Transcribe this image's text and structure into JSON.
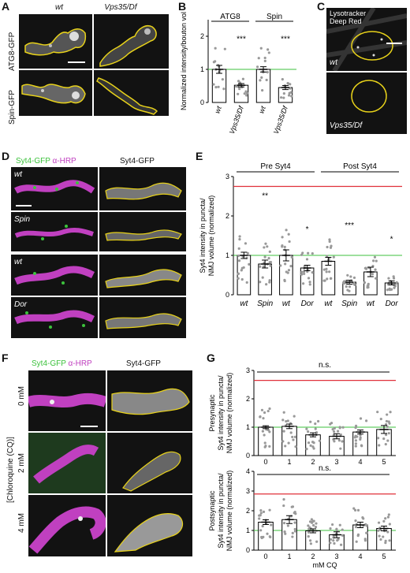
{
  "panels": {
    "A": {
      "letter": "A",
      "col_headers": [
        "wt",
        "Vps35/Df"
      ],
      "row_labels": [
        "ATG8-GFP",
        "Spin-GFP"
      ]
    },
    "B": {
      "letter": "B",
      "group_labels": [
        "ATG8",
        "Spin"
      ],
      "ylabel": "Normalized intensity/bouton vol",
      "x_labels": [
        "wt",
        "Vps35/Df",
        "wt",
        "Vps35/Df"
      ],
      "sig": [
        "***",
        "***"
      ]
    },
    "C": {
      "letter": "C",
      "title_line1": "Lysotracker",
      "title_line2": "Deep Red",
      "row_labels": [
        "wt",
        "Vps35/Df"
      ]
    },
    "D": {
      "letter": "D",
      "header_green": "Syt4-GFP",
      "header_mag": "α-HRP",
      "header_right": "Syt4-GFP",
      "row_labels": [
        "wt",
        "Spin",
        "wt",
        "Dor"
      ]
    },
    "E": {
      "letter": "E",
      "group_labels": [
        "Pre Syt4",
        "Post Syt4"
      ],
      "ylabel_line1": "Syt4 intensity in puncta/",
      "ylabel_line2": "NMJ volume (normalized)",
      "x_labels": [
        "wt",
        "Spin",
        "wt",
        "Dor",
        "wt",
        "Spin",
        "wt",
        "Dor"
      ],
      "sig": [
        "**",
        "*",
        "***",
        "*"
      ]
    },
    "F": {
      "letter": "F",
      "header_green": "Syt4-GFP",
      "header_mag": "α-HRP",
      "header_right": "Syt4-GFP",
      "row_labels": [
        "0 mM",
        "2 mM",
        "4 mM"
      ],
      "side_label": "[Chloroquine (CQ)]"
    },
    "G": {
      "letter": "G",
      "top_ylabel_line1": "Presynaptic",
      "top_ylabel_line2": "Syt4 intensity in puncta/",
      "top_ylabel_line3": "NMJ volume (normalized)",
      "bottom_ylabel_line1": "Postsynaptic",
      "bottom_ylabel_line2": "Syt4 intensity in puncta/",
      "bottom_ylabel_line3": "NMJ volume (normalized)",
      "ns": "n.s.",
      "xlabel": "mM CQ"
    }
  },
  "colors": {
    "outline": "#e8d21a",
    "reference_green": "#3cc23c",
    "reference_red": "#e0303a",
    "gfp": "#3cc23c",
    "hrp": "#c040c0"
  },
  "chart_data": [
    {
      "type": "bar",
      "panel": "B",
      "categories": [
        "wt",
        "Vps35/Df",
        "wt",
        "Vps35/Df"
      ],
      "groups": [
        "ATG8",
        "ATG8",
        "Spin",
        "Spin"
      ],
      "values": [
        1.0,
        0.52,
        1.0,
        0.45
      ],
      "errors": [
        0.12,
        0.05,
        0.08,
        0.06
      ],
      "ylim": [
        0,
        2.5
      ],
      "yticks": [
        0,
        1,
        2
      ],
      "reference_line": 1,
      "ylabel": "Normalized intensity/bouton vol"
    },
    {
      "type": "bar",
      "panel": "E",
      "categories": [
        "wt",
        "Spin",
        "wt",
        "Dor",
        "wt",
        "Spin",
        "wt",
        "Dor"
      ],
      "groups": [
        "Pre Syt4",
        "Pre Syt4",
        "Pre Syt4",
        "Pre Syt4",
        "Post Syt4",
        "Post Syt4",
        "Post Syt4",
        "Post Syt4"
      ],
      "values": [
        1.0,
        0.78,
        1.0,
        0.68,
        0.85,
        0.32,
        0.58,
        0.3
      ],
      "errors": [
        0.08,
        0.1,
        0.14,
        0.07,
        0.1,
        0.05,
        0.12,
        0.05
      ],
      "ylim": [
        0,
        3
      ],
      "yticks": [
        0,
        1,
        2,
        3
      ],
      "reference_line_green": 1,
      "reference_line_red": 2.75
    },
    {
      "type": "bar",
      "panel": "G-top",
      "categories": [
        "0",
        "1",
        "2",
        "3",
        "4",
        "5"
      ],
      "values": [
        1.0,
        1.03,
        0.73,
        0.68,
        0.83,
        0.92
      ],
      "errors": [
        0.05,
        0.08,
        0.07,
        0.09,
        0.07,
        0.14
      ],
      "ylim": [
        0,
        3
      ],
      "yticks": [
        0,
        1,
        2,
        3
      ],
      "reference_line_green": 1,
      "reference_line_red": 2.65
    },
    {
      "type": "bar",
      "panel": "G-bottom",
      "categories": [
        "0",
        "1",
        "2",
        "3",
        "4",
        "5"
      ],
      "values": [
        1.42,
        1.55,
        0.98,
        0.78,
        1.28,
        1.1
      ],
      "errors": [
        0.12,
        0.2,
        0.1,
        0.15,
        0.14,
        0.12
      ],
      "ylim": [
        0,
        4
      ],
      "yticks": [
        0,
        1,
        2,
        3,
        4
      ],
      "reference_line_green": 1,
      "reference_line_red": 2.85,
      "xlabel": "mM CQ"
    }
  ]
}
